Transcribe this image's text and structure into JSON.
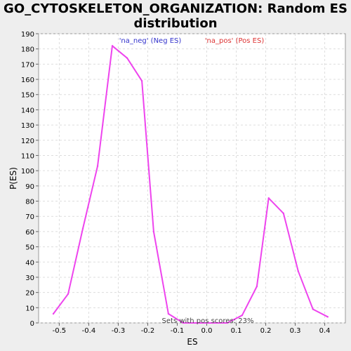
{
  "chart_data": {
    "type": "line",
    "title_lines": [
      "GO_CYTOSKELETON_ORGANIZATION: Random ES",
      "distribution"
    ],
    "xlabel": "ES",
    "ylabel": "P(ES)",
    "xlim": [
      -0.57,
      0.47
    ],
    "ylim": [
      0,
      190
    ],
    "xticks": [
      -0.5,
      -0.4,
      -0.3,
      -0.2,
      -0.1,
      0.0,
      0.1,
      0.2,
      0.3,
      0.4
    ],
    "xtick_labels": [
      "-0.5",
      "-0.4",
      "-0.3",
      "-0.2",
      "-0.1",
      "0.0",
      "0.1",
      "0.2",
      "0.3",
      "0.4"
    ],
    "yticks": [
      0,
      10,
      20,
      30,
      40,
      50,
      60,
      70,
      80,
      90,
      100,
      110,
      120,
      130,
      140,
      150,
      160,
      170,
      180,
      190
    ],
    "ytick_labels": [
      "0",
      "10",
      "20",
      "30",
      "40",
      "50",
      "60",
      "70",
      "80",
      "90",
      "100",
      "110",
      "120",
      "130",
      "140",
      "150",
      "160",
      "170",
      "180",
      "190"
    ],
    "grid": true,
    "legend": [
      {
        "label": "'na_neg' (Neg ES)",
        "color": "#3333cc"
      },
      {
        "label": "'na_pos' (Pos ES)",
        "color": "#dd3333"
      }
    ],
    "annotation": "Sets with pos scores: 23%",
    "series": [
      {
        "color": "#ee44ee",
        "x": [
          -0.52,
          -0.47,
          -0.42,
          -0.37,
          -0.32,
          -0.27,
          -0.22,
          -0.18,
          -0.13,
          -0.08,
          -0.03,
          0.02,
          0.07,
          0.12,
          0.17,
          0.21,
          0.26,
          0.31,
          0.36,
          0.41
        ],
        "y": [
          6,
          19,
          62,
          103,
          182,
          174,
          159,
          60,
          6,
          0,
          0,
          0,
          0,
          5,
          24,
          82,
          72,
          34,
          9,
          4
        ]
      }
    ]
  }
}
